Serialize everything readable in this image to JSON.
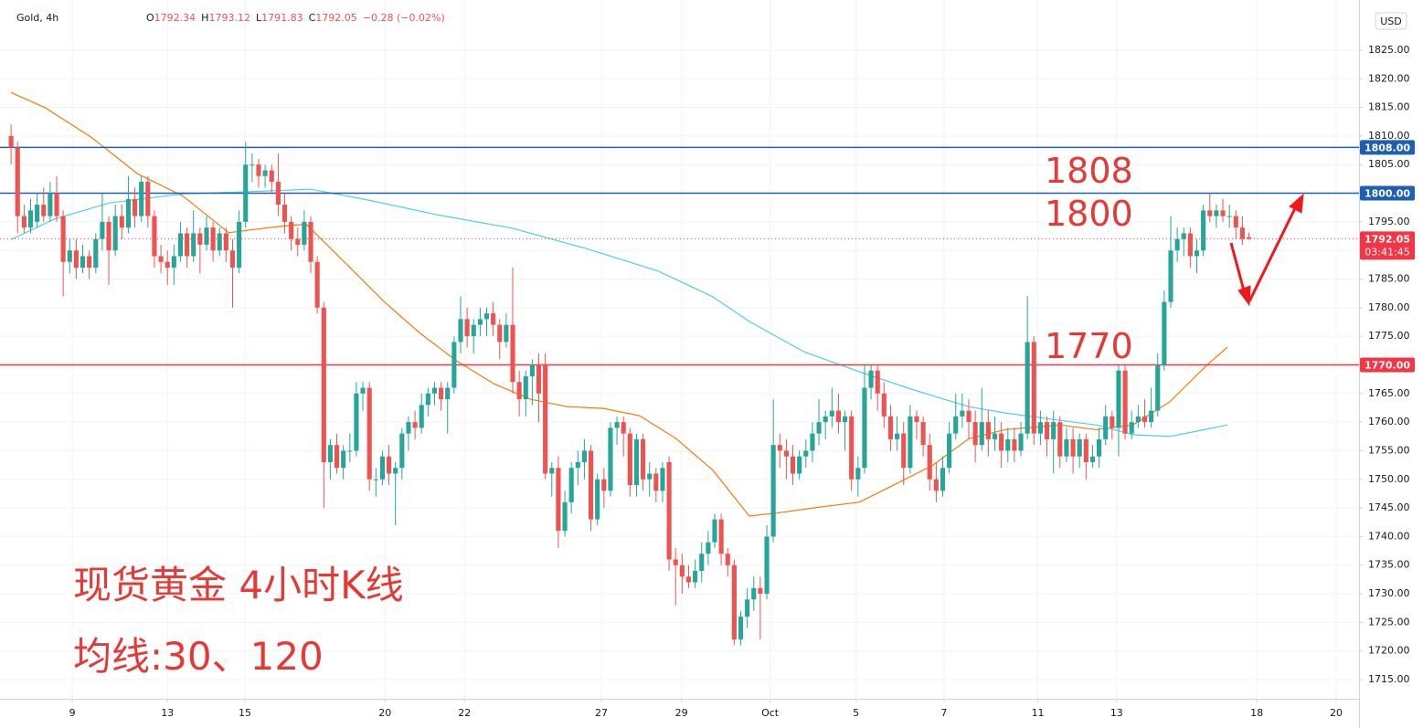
{
  "header": {
    "symbol": "Gold, 4h",
    "fields": [
      {
        "key": "O",
        "value": 1792.34
      },
      {
        "key": "H",
        "value": 1793.12
      },
      {
        "key": "L",
        "value": 1791.83
      },
      {
        "key": "C",
        "value": 1792.05
      }
    ],
    "change": "−0.28 (−0.02%)",
    "currency": "USD"
  },
  "chart_data": {
    "type": "candlestick",
    "up_color": "#26a69a",
    "down_color": "#ef5350",
    "ylim": [
      1711.65,
      1833.77
    ],
    "yticks": [
      {
        "value": 1715,
        "label": "1715.00"
      },
      {
        "value": 1720,
        "label": "1720.00"
      },
      {
        "value": 1725,
        "label": "1725.00"
      },
      {
        "value": 1730,
        "label": "1730.00"
      },
      {
        "value": 1735,
        "label": "1735.00"
      },
      {
        "value": 1740,
        "label": "1740.00"
      },
      {
        "value": 1745,
        "label": "1745.00"
      },
      {
        "value": 1750,
        "label": "1750.00"
      },
      {
        "value": 1755,
        "label": "1755.00"
      },
      {
        "value": 1760,
        "label": "1760.00"
      },
      {
        "value": 1765,
        "label": "1765.00"
      },
      {
        "value": 1770,
        "label": "1770.00"
      },
      {
        "value": 1775,
        "label": "1775.00"
      },
      {
        "value": 1780,
        "label": "1780.00"
      },
      {
        "value": 1785,
        "label": "1785.00"
      },
      {
        "value": 1790,
        "label": "1790.00"
      },
      {
        "value": 1795,
        "label": "1795.00"
      },
      {
        "value": 1800,
        "label": "1800.00"
      },
      {
        "value": 1805,
        "label": "1805.00"
      },
      {
        "value": 1810,
        "label": "1810.00"
      },
      {
        "value": 1815,
        "label": "1815.00"
      },
      {
        "value": 1820,
        "label": "1820.00"
      },
      {
        "value": 1825,
        "label": "1825.00"
      }
    ],
    "xlim": [
      -1.7,
      206.9
    ],
    "xticks": [
      {
        "value": 9.4,
        "label": "9"
      },
      {
        "value": 24.0,
        "label": "13"
      },
      {
        "value": 35.9,
        "label": "15"
      },
      {
        "value": 57.4,
        "label": "20"
      },
      {
        "value": 69.6,
        "label": "22"
      },
      {
        "value": 90.6,
        "label": "27"
      },
      {
        "value": 102.9,
        "label": "29"
      },
      {
        "value": 116.5,
        "label": "Oct"
      },
      {
        "value": 129.7,
        "label": "5"
      },
      {
        "value": 143.2,
        "label": "7"
      },
      {
        "value": 157.6,
        "label": "11"
      },
      {
        "value": 169.7,
        "label": "13"
      },
      {
        "value": 191.2,
        "label": "18"
      },
      {
        "value": 203.4,
        "label": "20"
      }
    ],
    "grid": true,
    "candles": [
      [
        1810,
        1812,
        1805,
        1808
      ],
      [
        1808,
        1809,
        1793,
        1796
      ],
      [
        1796,
        1798,
        1793,
        1794
      ],
      [
        1794,
        1799,
        1793,
        1797
      ],
      [
        1795,
        1800,
        1794,
        1798
      ],
      [
        1798,
        1801,
        1795,
        1796
      ],
      [
        1796,
        1802,
        1795,
        1800
      ],
      [
        1800,
        1803,
        1795,
        1796
      ],
      [
        1796,
        1797,
        1782,
        1788
      ],
      [
        1788,
        1792,
        1786,
        1790
      ],
      [
        1790,
        1792,
        1785,
        1787
      ],
      [
        1787,
        1791,
        1786,
        1789
      ],
      [
        1789,
        1790,
        1785,
        1787
      ],
      [
        1787,
        1793,
        1786,
        1792
      ],
      [
        1792,
        1800,
        1790,
        1795
      ],
      [
        1795,
        1796,
        1784,
        1790
      ],
      [
        1790,
        1798,
        1789,
        1796
      ],
      [
        1796,
        1798,
        1792,
        1794
      ],
      [
        1794,
        1803,
        1793,
        1799
      ],
      [
        1799,
        1801,
        1794,
        1796
      ],
      [
        1796,
        1803,
        1795,
        1802
      ],
      [
        1802,
        1803,
        1794,
        1796
      ],
      [
        1796,
        1797,
        1787,
        1789
      ],
      [
        1789,
        1791,
        1786,
        1788
      ],
      [
        1788,
        1790,
        1784,
        1787
      ],
      [
        1787,
        1791,
        1784,
        1789
      ],
      [
        1789,
        1795,
        1788,
        1793
      ],
      [
        1793,
        1794,
        1787,
        1789
      ],
      [
        1789,
        1797,
        1788,
        1793
      ],
      [
        1793,
        1794,
        1786,
        1791
      ],
      [
        1791,
        1796,
        1790,
        1794
      ],
      [
        1794,
        1795,
        1788,
        1790
      ],
      [
        1790,
        1794,
        1789,
        1793
      ],
      [
        1793,
        1794,
        1788,
        1790
      ],
      [
        1790,
        1792,
        1780,
        1787
      ],
      [
        1787,
        1797,
        1786,
        1795
      ],
      [
        1795,
        1809,
        1794,
        1805
      ],
      [
        1805,
        1807,
        1802,
        1805
      ],
      [
        1805,
        1806,
        1801,
        1803
      ],
      [
        1803,
        1805,
        1801,
        1804
      ],
      [
        1804,
        1805,
        1800,
        1802
      ],
      [
        1802,
        1807,
        1796,
        1798
      ],
      [
        1798,
        1800,
        1793,
        1795
      ],
      [
        1795,
        1796,
        1790,
        1792
      ],
      [
        1792,
        1794,
        1789,
        1791
      ],
      [
        1791,
        1797,
        1790,
        1795
      ],
      [
        1795,
        1796,
        1786,
        1788
      ],
      [
        1788,
        1789,
        1779,
        1780
      ],
      [
        1780,
        1781,
        1745,
        1753
      ],
      [
        1753,
        1757,
        1750,
        1756
      ],
      [
        1756,
        1758,
        1751,
        1752
      ],
      [
        1752,
        1756,
        1750,
        1755
      ],
      [
        1755,
        1758,
        1753,
        1755
      ],
      [
        1755,
        1767,
        1754,
        1765
      ],
      [
        1765,
        1767,
        1762,
        1766
      ],
      [
        1766,
        1767,
        1748,
        1750
      ],
      [
        1750,
        1752,
        1747,
        1750
      ],
      [
        1750,
        1755,
        1749,
        1754
      ],
      [
        1754,
        1756,
        1749,
        1751
      ],
      [
        1751,
        1753,
        1742,
        1752
      ],
      [
        1752,
        1759,
        1750,
        1758
      ],
      [
        1758,
        1761,
        1755,
        1760
      ],
      [
        1760,
        1762,
        1757,
        1759
      ],
      [
        1759,
        1765,
        1758,
        1763
      ],
      [
        1763,
        1766,
        1761,
        1765
      ],
      [
        1765,
        1767,
        1763,
        1766
      ],
      [
        1766,
        1767,
        1762,
        1764
      ],
      [
        1764,
        1767,
        1758,
        1766
      ],
      [
        1766,
        1775,
        1765,
        1774
      ],
      [
        1774,
        1782,
        1772,
        1778
      ],
      [
        1778,
        1780,
        1773,
        1775
      ],
      [
        1775,
        1778,
        1772,
        1777
      ],
      [
        1777,
        1780,
        1775,
        1778
      ],
      [
        1778,
        1780,
        1775,
        1779
      ],
      [
        1779,
        1781,
        1775,
        1777
      ],
      [
        1777,
        1778,
        1771,
        1774
      ],
      [
        1774,
        1779,
        1773,
        1777
      ],
      [
        1777,
        1787,
        1765,
        1767
      ],
      [
        1767,
        1769,
        1761,
        1764
      ],
      [
        1764,
        1769,
        1761,
        1768
      ],
      [
        1768,
        1771,
        1763,
        1770
      ],
      [
        1770,
        1772,
        1760,
        1765
      ],
      [
        1770,
        1772,
        1750,
        1751
      ],
      [
        1751,
        1753,
        1747,
        1752
      ],
      [
        1752,
        1754,
        1738,
        1741
      ],
      [
        1741,
        1748,
        1740,
        1746
      ],
      [
        1746,
        1753,
        1744,
        1752
      ],
      [
        1752,
        1755,
        1749,
        1753
      ],
      [
        1753,
        1757,
        1750,
        1755
      ],
      [
        1755,
        1756,
        1741,
        1743
      ],
      [
        1743,
        1751,
        1742,
        1750
      ],
      [
        1750,
        1752,
        1745,
        1748
      ],
      [
        1748,
        1760,
        1747,
        1759
      ],
      [
        1759,
        1761,
        1756,
        1760
      ],
      [
        1760,
        1761,
        1754,
        1758
      ],
      [
        1758,
        1759,
        1747,
        1749
      ],
      [
        1749,
        1758,
        1747,
        1757
      ],
      [
        1757,
        1758,
        1748,
        1750
      ],
      [
        1750,
        1753,
        1747,
        1751
      ],
      [
        1751,
        1752,
        1746,
        1748
      ],
      [
        1748,
        1753,
        1746,
        1752
      ],
      [
        1753,
        1754,
        1734,
        1736
      ],
      [
        1736,
        1738,
        1728,
        1735
      ],
      [
        1735,
        1737,
        1730,
        1733
      ],
      [
        1733,
        1735,
        1731,
        1732
      ],
      [
        1732,
        1736,
        1731,
        1734
      ],
      [
        1734,
        1739,
        1732,
        1737
      ],
      [
        1737,
        1741,
        1735,
        1739
      ],
      [
        1739,
        1744,
        1738,
        1743
      ],
      [
        1743,
        1744,
        1735,
        1737
      ],
      [
        1737,
        1738,
        1733,
        1735
      ],
      [
        1735,
        1736,
        1721,
        1722
      ],
      [
        1722,
        1727,
        1721,
        1726
      ],
      [
        1726,
        1731,
        1724,
        1729
      ],
      [
        1729,
        1733,
        1727,
        1731
      ],
      [
        1731,
        1733,
        1722,
        1730
      ],
      [
        1730,
        1742,
        1729,
        1740
      ],
      [
        1740,
        1764,
        1739,
        1756
      ],
      [
        1756,
        1758,
        1752,
        1755
      ],
      [
        1755,
        1757,
        1750,
        1754
      ],
      [
        1754,
        1756,
        1749,
        1751
      ],
      [
        1751,
        1755,
        1750,
        1754
      ],
      [
        1754,
        1757,
        1752,
        1755
      ],
      [
        1755,
        1760,
        1753,
        1758
      ],
      [
        1758,
        1764,
        1756,
        1760
      ],
      [
        1760,
        1762,
        1757,
        1761
      ],
      [
        1761,
        1766,
        1759,
        1762
      ],
      [
        1762,
        1765,
        1758,
        1760
      ],
      [
        1760,
        1762,
        1755,
        1761
      ],
      [
        1761,
        1762,
        1748,
        1750
      ],
      [
        1750,
        1754,
        1747,
        1752
      ],
      [
        1752,
        1770,
        1751,
        1766
      ],
      [
        1766,
        1770,
        1764,
        1769
      ],
      [
        1769,
        1770,
        1762,
        1765
      ],
      [
        1765,
        1767,
        1759,
        1761
      ],
      [
        1761,
        1763,
        1755,
        1757
      ],
      [
        1757,
        1761,
        1755,
        1758
      ],
      [
        1758,
        1760,
        1749,
        1752
      ],
      [
        1752,
        1763,
        1751,
        1761
      ],
      [
        1761,
        1762,
        1757,
        1760
      ],
      [
        1760,
        1761,
        1754,
        1756
      ],
      [
        1756,
        1758,
        1748,
        1750
      ],
      [
        1750,
        1753,
        1746,
        1748
      ],
      [
        1748,
        1754,
        1747,
        1752
      ],
      [
        1752,
        1760,
        1751,
        1758
      ],
      [
        1758,
        1765,
        1757,
        1761
      ],
      [
        1761,
        1765,
        1759,
        1762
      ],
      [
        1762,
        1764,
        1757,
        1760
      ],
      [
        1760,
        1762,
        1753,
        1756
      ],
      [
        1756,
        1766,
        1755,
        1760
      ],
      [
        1760,
        1762,
        1754,
        1757
      ],
      [
        1757,
        1761,
        1755,
        1758
      ],
      [
        1758,
        1760,
        1752,
        1755
      ],
      [
        1755,
        1759,
        1753,
        1757
      ],
      [
        1757,
        1759,
        1753,
        1755
      ],
      [
        1755,
        1760,
        1754,
        1758
      ],
      [
        1758,
        1782,
        1757,
        1774
      ],
      [
        1774,
        1775,
        1756,
        1758
      ],
      [
        1758,
        1762,
        1756,
        1760
      ],
      [
        1760,
        1761,
        1754,
        1757
      ],
      [
        1757,
        1762,
        1751,
        1760
      ],
      [
        1760,
        1761,
        1752,
        1754
      ],
      [
        1754,
        1759,
        1753,
        1757
      ],
      [
        1757,
        1759,
        1751,
        1754
      ],
      [
        1754,
        1758,
        1752,
        1757
      ],
      [
        1757,
        1758,
        1750,
        1753
      ],
      [
        1753,
        1756,
        1752,
        1754
      ],
      [
        1754,
        1759,
        1752,
        1757
      ],
      [
        1757,
        1763,
        1756,
        1761
      ],
      [
        1761,
        1762,
        1757,
        1759
      ],
      [
        1759,
        1770,
        1754,
        1769
      ],
      [
        1769,
        1770,
        1757,
        1758
      ],
      [
        1758,
        1762,
        1757,
        1760
      ],
      [
        1760,
        1763,
        1759,
        1761
      ],
      [
        1761,
        1764,
        1759,
        1760
      ],
      [
        1760,
        1766,
        1759,
        1762
      ],
      [
        1762,
        1772,
        1761,
        1770
      ],
      [
        1770,
        1783,
        1769,
        1781
      ],
      [
        1781,
        1796,
        1780,
        1790
      ],
      [
        1790,
        1794,
        1788,
        1792
      ],
      [
        1792,
        1794,
        1789,
        1793
      ],
      [
        1793,
        1794,
        1787,
        1789
      ],
      [
        1789,
        1792,
        1786,
        1790
      ],
      [
        1790,
        1798,
        1789,
        1797
      ],
      [
        1797,
        1800,
        1795,
        1796
      ],
      [
        1796,
        1798,
        1794,
        1797
      ],
      [
        1797,
        1799,
        1795,
        1796
      ],
      [
        1796,
        1798,
        1794,
        1796
      ],
      [
        1796,
        1797,
        1792,
        1794
      ],
      [
        1794,
        1796,
        1791,
        1792
      ],
      [
        1792.34,
        1793.12,
        1791.83,
        1792.05
      ]
    ],
    "moving_averages": [
      {
        "color": "#f57c00",
        "x": [
          0,
          5.3,
          12.3,
          19.4,
          26.4,
          33.4,
          40.4,
          45.3,
          51.6,
          57.2,
          62.8,
          68.4,
          74.1,
          79.7,
          85.3,
          90.9,
          96.5,
          102.1,
          107.7,
          113.3,
          117.5,
          124.5,
          130.2,
          135.8,
          141.4,
          147.0,
          152.6,
          161.0,
          166.6,
          172.2,
          177.8,
          183.5,
          186.7
        ],
        "values": [
          1817.6,
          1814.9,
          1809.8,
          1803.4,
          1799.5,
          1793.1,
          1794.1,
          1794.6,
          1787.5,
          1781.1,
          1775.5,
          1770.7,
          1766.7,
          1764.0,
          1762.7,
          1762.4,
          1761.1,
          1757.1,
          1751.6,
          1743.6,
          1744.1,
          1745.2,
          1746.0,
          1749.2,
          1752.4,
          1757.1,
          1758.7,
          1759.5,
          1758.7,
          1759.5,
          1763.5,
          1769.9,
          1773.1
        ]
      },
      {
        "color": "#4dd0e1",
        "x": [
          0,
          6.7,
          15.1,
          26.4,
          34.8,
          46.0,
          54.4,
          65.6,
          76.9,
          88.1,
          99.3,
          107.7,
          113.3,
          121.7,
          130.2,
          138.6,
          147.0,
          152.6,
          161.0,
          166.6,
          172.2,
          177.8,
          180.6,
          186.7
        ],
        "values": [
          1791.9,
          1795.5,
          1798.3,
          1799.9,
          1800.2,
          1800.7,
          1798.9,
          1796.2,
          1793.9,
          1790.4,
          1786.4,
          1781.9,
          1777.6,
          1772.3,
          1768.8,
          1765.6,
          1762.7,
          1761.6,
          1760.3,
          1759.5,
          1757.8,
          1757.5,
          1758.1,
          1759.5
        ]
      }
    ],
    "levels": [
      {
        "value": 1808,
        "label": "1808.00",
        "color": "#1e5fb4"
      },
      {
        "value": 1800,
        "label": "1800.00",
        "color": "#1e5fb4"
      },
      {
        "value": 1770,
        "label": "1770.00",
        "color": "#f23645"
      }
    ],
    "last": {
      "value": 1792.05,
      "countdown": "03:41:45",
      "color": "#f23645"
    },
    "annotations": [
      1808,
      1800,
      1770
    ],
    "notes": [
      "现货黄金 4小时K线",
      "均线:30、120"
    ]
  }
}
